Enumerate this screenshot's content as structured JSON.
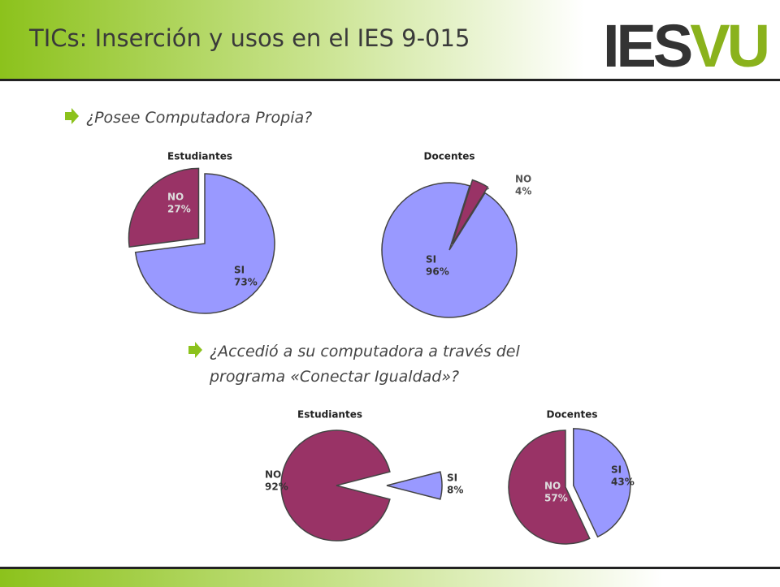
{
  "header": {
    "title": "TICs: Inserción y usos en el IES 9-015",
    "logo": [
      "IES",
      "VU"
    ]
  },
  "questions": [
    "¿Posee Computadora Propia?",
    "¿Accedió a su computadora a través del programa «Conectar Igualdad»?"
  ],
  "chart_data": [
    {
      "type": "pie",
      "title": "Estudiantes",
      "categories": [
        "SI",
        "NO"
      ],
      "values": [
        73,
        27
      ],
      "value_labels": [
        "73%",
        "27%"
      ],
      "colors": [
        "#9999ff",
        "#993366"
      ]
    },
    {
      "type": "pie",
      "title": "Docentes",
      "categories": [
        "SI",
        "NO"
      ],
      "values": [
        96,
        4
      ],
      "value_labels": [
        "96%",
        "4%"
      ],
      "colors": [
        "#9999ff",
        "#993366"
      ]
    },
    {
      "type": "pie",
      "title": "Estudiantes",
      "categories": [
        "SI",
        "NO"
      ],
      "values": [
        8,
        92
      ],
      "value_labels": [
        "8%",
        "92%"
      ],
      "colors": [
        "#9999ff",
        "#993366"
      ]
    },
    {
      "type": "pie",
      "title": "Docentes",
      "categories": [
        "SI",
        "NO"
      ],
      "values": [
        43,
        57
      ],
      "value_labels": [
        "43%",
        "57%"
      ],
      "colors": [
        "#9999ff",
        "#993366"
      ]
    }
  ]
}
